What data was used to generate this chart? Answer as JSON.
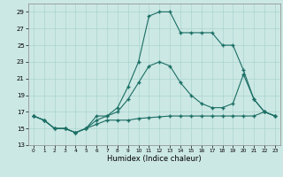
{
  "xlabel": "Humidex (Indice chaleur)",
  "background_color": "#cce8e4",
  "grid_color": "#aad4d0",
  "line_color": "#1a6e64",
  "xlim": [
    -0.5,
    23.5
  ],
  "ylim": [
    13,
    30
  ],
  "yticks": [
    13,
    15,
    17,
    19,
    21,
    23,
    25,
    27,
    29
  ],
  "xticks": [
    0,
    1,
    2,
    3,
    4,
    5,
    6,
    7,
    8,
    9,
    10,
    11,
    12,
    13,
    14,
    15,
    16,
    17,
    18,
    19,
    20,
    21,
    22,
    23
  ],
  "series1_x": [
    0,
    1,
    2,
    3,
    4,
    5,
    6,
    7,
    8,
    9,
    10,
    11,
    12,
    13,
    14,
    15,
    16,
    17,
    18,
    19,
    20,
    21,
    22,
    23
  ],
  "series1_y": [
    16.5,
    16.0,
    15.0,
    15.0,
    14.5,
    15.0,
    16.5,
    16.5,
    17.5,
    20.0,
    23.0,
    28.5,
    29.0,
    29.0,
    26.5,
    26.5,
    26.5,
    26.5,
    25.0,
    25.0,
    22.0,
    18.5,
    17.0,
    16.5
  ],
  "series2_x": [
    0,
    1,
    2,
    3,
    4,
    5,
    6,
    7,
    8,
    9,
    10,
    11,
    12,
    13,
    14,
    15,
    16,
    17,
    18,
    19,
    20,
    21,
    22,
    23
  ],
  "series2_y": [
    16.5,
    16.0,
    15.0,
    15.0,
    14.5,
    15.0,
    16.0,
    16.5,
    17.0,
    18.5,
    20.5,
    22.5,
    23.0,
    22.5,
    20.5,
    19.0,
    18.0,
    17.5,
    17.5,
    18.0,
    21.5,
    18.5,
    17.0,
    16.5
  ],
  "series3_x": [
    0,
    1,
    2,
    3,
    4,
    5,
    6,
    7,
    8,
    9,
    10,
    11,
    12,
    13,
    14,
    15,
    16,
    17,
    18,
    19,
    20,
    21,
    22,
    23
  ],
  "series3_y": [
    16.5,
    16.0,
    15.0,
    15.0,
    14.5,
    15.0,
    15.5,
    16.0,
    16.0,
    16.0,
    16.2,
    16.3,
    16.4,
    16.5,
    16.5,
    16.5,
    16.5,
    16.5,
    16.5,
    16.5,
    16.5,
    16.5,
    17.0,
    16.5
  ]
}
